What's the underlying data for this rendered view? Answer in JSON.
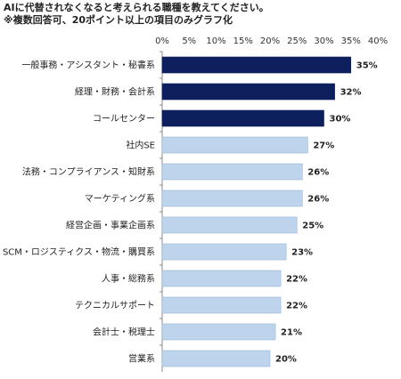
{
  "title_lines": [
    "AIに代替されなくなると考えられる職種を教えてください。",
    "※複数回答可、20ポイント以上の項目のみグラフ化"
  ],
  "chart_data": {
    "type": "bar",
    "orientation": "horizontal",
    "categories": [
      "一般事務・アシスタント・秘書系",
      "経理・財務・会計系",
      "コールセンター",
      "社内SE",
      "法務・コンプライアンス・知財系",
      "マーケティング系",
      "経営企画・事業企画系",
      "SCM・ロジスティクス・物流・購買系",
      "人事・総務系",
      "テクニカルサポート",
      "会計士・税理士",
      "営業系"
    ],
    "values": [
      35,
      32,
      30,
      27,
      26,
      26,
      25,
      23,
      22,
      22,
      21,
      20
    ],
    "value_labels": [
      "35%",
      "32%",
      "30%",
      "27%",
      "26%",
      "26%",
      "25%",
      "23%",
      "22%",
      "22%",
      "21%",
      "20%"
    ],
    "xlim": [
      0,
      40
    ],
    "xticks": [
      "0%",
      "5%",
      "10%",
      "15%",
      "20%",
      "25%",
      "30%",
      "35%",
      "40%"
    ],
    "axis_position": "top",
    "grid": false,
    "highlight_count": 3,
    "colors": {
      "highlight": "#0d1f5c",
      "normal": "#bdd4ec",
      "normal_border": "#9ab6d6"
    }
  }
}
